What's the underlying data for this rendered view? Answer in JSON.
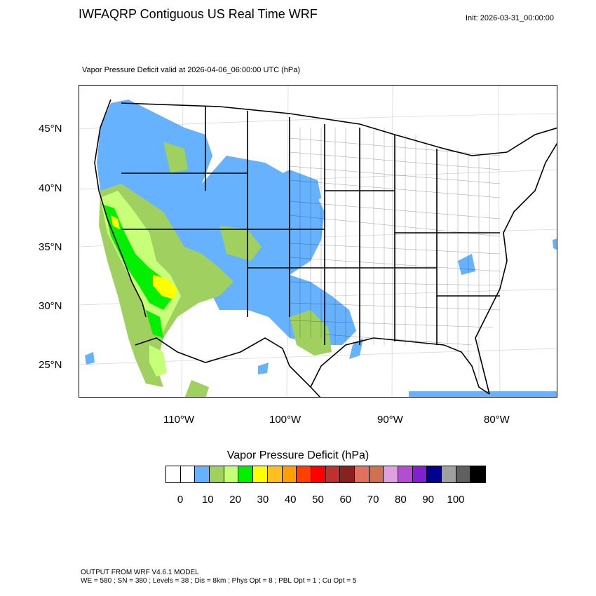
{
  "header": {
    "title": "IWFAQRP Contiguous US Real Time WRF",
    "init": "Init: 2026-03-31_00:00:00",
    "field": "Vapor Pressure Deficit valid at 2026-04-06_06:00:00 UTC   (hPa)"
  },
  "map": {
    "lat_ticks": [
      "45°N",
      "40°N",
      "35°N",
      "30°N",
      "25°N"
    ],
    "lon_ticks": [
      "110°W",
      "100°W",
      "90°W",
      "80°W"
    ],
    "colors": {
      "ocean": "#ffffff",
      "land": "#ffffff",
      "low_vpd": "#66b2ff",
      "mid_vpd": "#a0d060",
      "high_vpd": "#c8ff78",
      "very_high_vpd": "#00f000",
      "peak_vpd": "#ffff00"
    }
  },
  "colorbar": {
    "title": "Vapor Pressure Deficit  (hPa)",
    "colors": [
      "#ffffff",
      "#ffffff",
      "#66b2ff",
      "#a0d060",
      "#c8ff78",
      "#00f000",
      "#ffff00",
      "#ffbf20",
      "#ffa000",
      "#ff4000",
      "#ff0000",
      "#c03030",
      "#8b2020",
      "#e07060",
      "#d07050",
      "#e0a0e0",
      "#b050d0",
      "#8020d0",
      "#000090",
      "#a0a0a0",
      "#606060",
      "#000000"
    ],
    "labels": [
      "0",
      "10",
      "20",
      "30",
      "40",
      "50",
      "60",
      "70",
      "80",
      "90",
      "100"
    ]
  },
  "footer": {
    "line1": "OUTPUT FROM WRF V4.6.1 MODEL",
    "line2": "WE = 580 ; SN = 380 ; Levels = 38 ; Dis = 8km ; Phys Opt = 8 ; PBL Opt = 1 ; Cu Opt = 5"
  }
}
